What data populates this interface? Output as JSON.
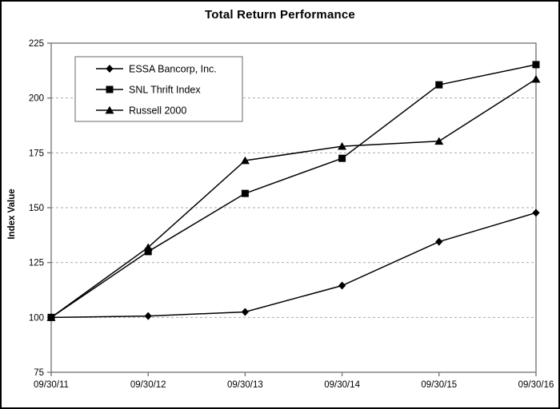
{
  "title": "Total Return Performance",
  "chart_data": {
    "type": "line",
    "title": "Total Return Performance",
    "xlabel": "",
    "ylabel": "Index Value",
    "x": [
      "09/30/11",
      "09/30/12",
      "09/30/13",
      "09/30/14",
      "09/30/15",
      "09/30/16"
    ],
    "series": [
      {
        "name": "ESSA Bancorp, Inc.",
        "marker": "diamond",
        "values": [
          100.0,
          100.6,
          102.5,
          114.5,
          134.5,
          147.7
        ]
      },
      {
        "name": "SNL Thrift Index",
        "marker": "square",
        "values": [
          100.0,
          130.0,
          156.5,
          172.5,
          206.0,
          215.2
        ]
      },
      {
        "name": "Russell 2000",
        "marker": "triangle",
        "values": [
          100.0,
          131.9,
          171.5,
          178.0,
          180.3,
          208.6
        ]
      }
    ],
    "ylim": [
      75,
      225
    ],
    "yticks": [
      75,
      100,
      125,
      150,
      175,
      200,
      225
    ],
    "grid": "horizontal-dashed",
    "legend_position": "top-left",
    "colors": {
      "series_line": "#000000",
      "marker_fill": "#000000",
      "grid_line": "#aaaaaa",
      "axis_line": "#7a7a7a",
      "text": "#000000",
      "legend_border": "#808080",
      "background": "#ffffff"
    }
  }
}
